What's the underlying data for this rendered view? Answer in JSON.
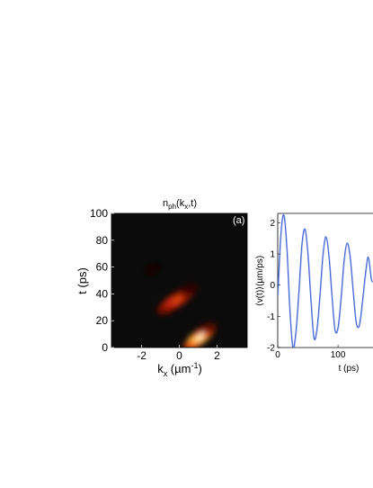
{
  "chart_data": [
    {
      "type": "heatmap",
      "title_main": "n",
      "title_sub": "ph",
      "title_rest_1": "(k",
      "title_sub_2": "x",
      "title_rest_2": ",t)",
      "panel_label": "(a)",
      "xlabel_main": "k",
      "xlabel_sub": "x",
      "xlabel_rest": " (µm",
      "xlabel_sup": "-1",
      "xlabel_end": ")",
      "ylabel": "t (ps)",
      "xlim": [
        -3.6,
        3.6
      ],
      "ylim": [
        0,
        100
      ],
      "xticks": [
        "-2",
        "0",
        "2"
      ],
      "xtick_values": [
        -2,
        0,
        2
      ],
      "yticks": [
        "0",
        "20",
        "40",
        "60",
        "80",
        "100"
      ],
      "ytick_values": [
        0,
        20,
        40,
        60,
        80,
        100
      ],
      "colormap": [
        "#000000",
        "#5a0a05",
        "#b81e08",
        "#f05a14",
        "#ffc038",
        "#fff6c8"
      ],
      "background": "#0c0b0b",
      "blobs": [
        {
          "k": 1.1,
          "t": 8,
          "intensity": 1.0,
          "slope_dk_dt": 0.07,
          "len": 16,
          "width": 0.3
        },
        {
          "k": -0.1,
          "t": 36,
          "intensity": 0.55,
          "slope_dk_dt": 0.085,
          "len": 18,
          "width": 0.32
        },
        {
          "k": -1.4,
          "t": 59,
          "intensity": 0.08,
          "slope_dk_dt": 0.05,
          "len": 6,
          "width": 0.25
        }
      ]
    },
    {
      "type": "line",
      "ylabel": "⟨v(t)⟩(µm/ps)",
      "xlabel": "t (ps)",
      "xlim": [
        0,
        158
      ],
      "ylim": [
        -2,
        2.3
      ],
      "xticks": [
        "0",
        "100"
      ],
      "xtick_values": [
        0,
        100
      ],
      "yticks": [
        "-2",
        "-1",
        "0",
        "1",
        "2"
      ],
      "ytick_values": [
        -2,
        -1,
        0,
        1,
        2
      ],
      "line_color": "#3f62d6",
      "x": [
        0,
        5,
        10,
        15,
        20,
        25,
        30,
        35,
        40,
        45,
        50,
        55,
        60,
        65,
        70,
        75,
        80,
        85,
        90,
        95,
        100,
        105,
        110,
        115,
        120,
        125,
        130,
        135,
        140,
        145,
        150,
        155,
        158
      ],
      "y": [
        -0.3,
        1.6,
        2.25,
        1.2,
        -0.8,
        -2.0,
        -1.5,
        -0.2,
        1.3,
        1.8,
        1.0,
        -0.5,
        -1.7,
        -1.4,
        -0.3,
        1.0,
        1.55,
        0.9,
        -0.4,
        -1.45,
        -1.35,
        -0.4,
        0.8,
        1.35,
        0.9,
        -0.2,
        -1.2,
        -1.3,
        -0.6,
        0.3,
        0.9,
        0.2,
        0.1
      ]
    }
  ]
}
